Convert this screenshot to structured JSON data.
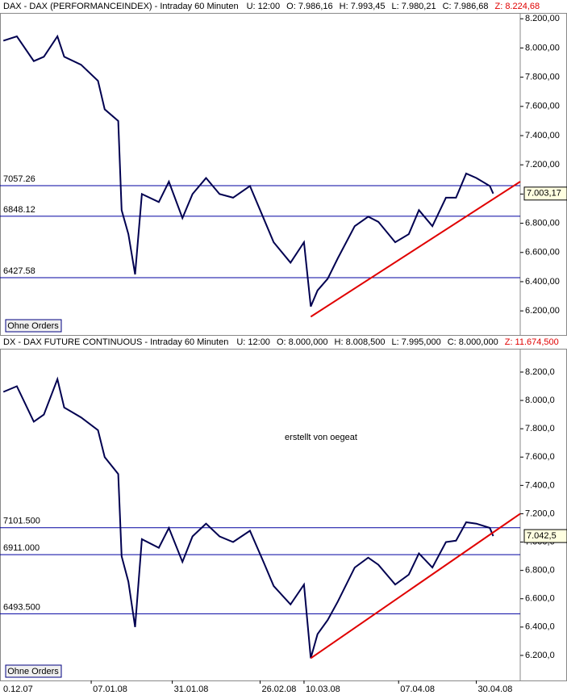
{
  "chart_data": [
    {
      "type": "line",
      "title": "DAX - DAX (PERFORMANCEINDEX) - Intraday 60 Minuten",
      "header_values": [
        "U: 12:00",
        "O: 7.986,16",
        "H: 7.993,45",
        "L: 7.980,21",
        "C: 7.986,68"
      ],
      "header_extreme": "Z: 8.224,68",
      "xlim": [
        "2007-12-11",
        "2008-05-13"
      ],
      "ylim": [
        6035,
        8240
      ],
      "yticks": [
        {
          "value": 6200,
          "label": "6.200,00"
        },
        {
          "value": 6400,
          "label": "6.400,00"
        },
        {
          "value": 6600,
          "label": "6.600,00"
        },
        {
          "value": 6800,
          "label": "6.800,00"
        },
        {
          "value": 7000,
          "label": "7.000,00"
        },
        {
          "value": 7200,
          "label": "7.200,00"
        },
        {
          "value": 7400,
          "label": "7.400,00"
        },
        {
          "value": 7600,
          "label": "7.600,00"
        },
        {
          "value": 7800,
          "label": "7.800,00"
        },
        {
          "value": 8000,
          "label": "8.000,00"
        },
        {
          "value": 8200,
          "label": "8.200,00"
        }
      ],
      "x": [
        "2007-12-12",
        "2007-12-16",
        "2007-12-21",
        "2007-12-24",
        "2007-12-28",
        "2007-12-30",
        "2008-01-04",
        "2008-01-09",
        "2008-01-11",
        "2008-01-15",
        "2008-01-16",
        "2008-01-18",
        "2008-01-20",
        "2008-01-22",
        "2008-01-27",
        "2008-01-30",
        "2008-02-03",
        "2008-02-06",
        "2008-02-10",
        "2008-02-14",
        "2008-02-18",
        "2008-02-23",
        "2008-02-27",
        "2008-03-01",
        "2008-03-06",
        "2008-03-10",
        "2008-03-12",
        "2008-03-14",
        "2008-03-17",
        "2008-03-20",
        "2008-03-25",
        "2008-03-29",
        "2008-04-01",
        "2008-04-06",
        "2008-04-10",
        "2008-04-13",
        "2008-04-17",
        "2008-04-21",
        "2008-04-24",
        "2008-04-27",
        "2008-04-30",
        "2008-05-04",
        "2008-05-05"
      ],
      "values": [
        8050,
        8080,
        7910,
        7940,
        8080,
        7940,
        7885,
        7775,
        7580,
        7500,
        6890,
        6725,
        6450,
        7000,
        6945,
        7085,
        6835,
        7000,
        7110,
        7000,
        6975,
        7055,
        6835,
        6670,
        6530,
        6670,
        6230,
        6340,
        6420,
        6560,
        6780,
        6845,
        6810,
        6670,
        6725,
        6890,
        6780,
        6975,
        6975,
        7140,
        7110,
        7055,
        7003.17
      ],
      "color": "#000050",
      "levels": [
        {
          "value": 7057.26,
          "label": "7057.26"
        },
        {
          "value": 6848.12,
          "label": "6848.12"
        },
        {
          "value": 6427.58,
          "label": "6427.58"
        }
      ],
      "level_color": "#0000a0",
      "trendline": {
        "x": [
          "2008-03-12",
          "2008-05-13"
        ],
        "values": [
          6160,
          7085
        ],
        "color": "#e00000"
      },
      "last": {
        "value": 7003.17,
        "label": "7.003,17"
      },
      "button": "Ohne Orders"
    },
    {
      "type": "line",
      "title": "DX - DAX FUTURE CONTINUOUS - Intraday 60 Minuten",
      "header_values": [
        "U: 12:00",
        "O: 8.000,000",
        "H: 8.008,500",
        "L: 7.995,000",
        "C: 8.000,000"
      ],
      "header_extreme": "Z: 11.674,500",
      "xlim": [
        "2007-12-11",
        "2008-05-13"
      ],
      "ylim": [
        6023,
        8365
      ],
      "yticks": [
        {
          "value": 6200,
          "label": "6.200,0"
        },
        {
          "value": 6400,
          "label": "6.400,0"
        },
        {
          "value": 6600,
          "label": "6.600,0"
        },
        {
          "value": 6800,
          "label": "6.800,0"
        },
        {
          "value": 7000,
          "label": "7.000,0"
        },
        {
          "value": 7200,
          "label": "7.200,0"
        },
        {
          "value": 7400,
          "label": "7.400,0"
        },
        {
          "value": 7600,
          "label": "7.600,0"
        },
        {
          "value": 7800,
          "label": "7.800,0"
        },
        {
          "value": 8000,
          "label": "8.000,0"
        },
        {
          "value": 8200,
          "label": "8.200,0"
        }
      ],
      "xticks": [
        {
          "value": "2007-12-10",
          "label": "0.12.07"
        },
        {
          "value": "2008-01-07",
          "label": "07.01.08"
        },
        {
          "value": "2008-01-31",
          "label": "31.01.08"
        },
        {
          "value": "2008-02-26",
          "label": "26.02.08"
        },
        {
          "value": "2008-03-10",
          "label": "10.03.08"
        },
        {
          "value": "2008-04-07",
          "label": "07.04.08"
        },
        {
          "value": "2008-04-30",
          "label": "30.04.08"
        }
      ],
      "x": [
        "2007-12-12",
        "2007-12-16",
        "2007-12-21",
        "2007-12-24",
        "2007-12-28",
        "2007-12-30",
        "2008-01-04",
        "2008-01-09",
        "2008-01-11",
        "2008-01-15",
        "2008-01-16",
        "2008-01-18",
        "2008-01-20",
        "2008-01-22",
        "2008-01-27",
        "2008-01-30",
        "2008-02-03",
        "2008-02-06",
        "2008-02-10",
        "2008-02-14",
        "2008-02-18",
        "2008-02-23",
        "2008-02-27",
        "2008-03-01",
        "2008-03-06",
        "2008-03-10",
        "2008-03-12",
        "2008-03-14",
        "2008-03-17",
        "2008-03-20",
        "2008-03-25",
        "2008-03-29",
        "2008-04-01",
        "2008-04-06",
        "2008-04-10",
        "2008-04-13",
        "2008-04-17",
        "2008-04-21",
        "2008-04-24",
        "2008-04-27",
        "2008-04-30",
        "2008-05-04",
        "2008-05-05"
      ],
      "values": [
        8060,
        8100,
        7850,
        7900,
        8150,
        7950,
        7880,
        7790,
        7600,
        7480,
        6900,
        6720,
        6400,
        7020,
        6960,
        7100,
        6860,
        7040,
        7130,
        7040,
        7000,
        7080,
        6860,
        6690,
        6560,
        6700,
        6180,
        6350,
        6450,
        6580,
        6820,
        6890,
        6840,
        6700,
        6770,
        6920,
        6820,
        7000,
        7010,
        7140,
        7130,
        7100,
        7042.5
      ],
      "color": "#000050",
      "levels": [
        {
          "value": 7101.5,
          "label": "7101.500"
        },
        {
          "value": 6911,
          "label": "6911.000"
        },
        {
          "value": 6493.5,
          "label": "6493.500"
        }
      ],
      "level_color": "#0000a0",
      "trendline": {
        "x": [
          "2008-03-12",
          "2008-05-13"
        ],
        "values": [
          6180,
          7200
        ],
        "color": "#e00000"
      },
      "last": {
        "value": 7042.5,
        "label": "7.042,5"
      },
      "annotation": "erstellt von oegeat",
      "annotation_color": "#208020",
      "button": "Ohne Orders"
    }
  ]
}
